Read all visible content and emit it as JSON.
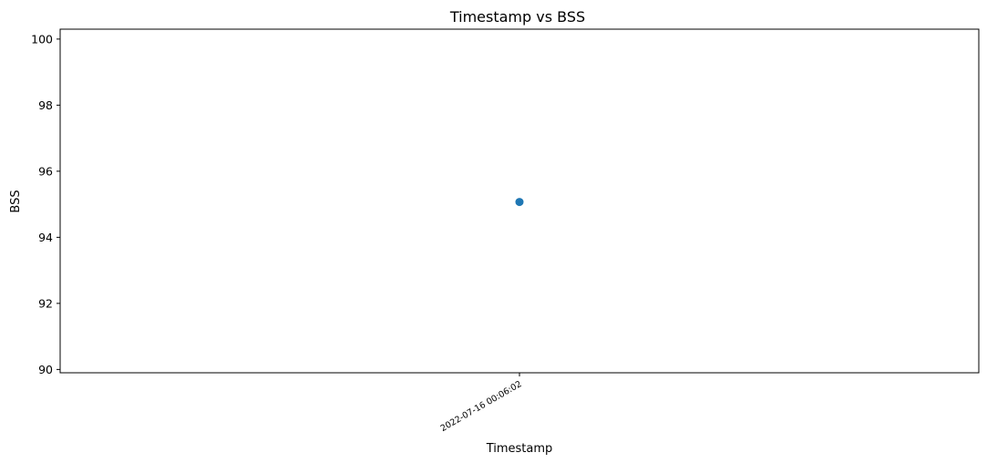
{
  "chart_data": {
    "type": "scatter",
    "title": "Timestamp vs BSS",
    "xlabel": "Timestamp",
    "ylabel": "BSS",
    "x": [
      "2022-07-16 00:06:02"
    ],
    "y": [
      95.07
    ],
    "x_tick_labels": [
      "2022-07-16 00:06:02"
    ],
    "y_ticks": [
      90,
      92,
      94,
      96,
      98,
      100
    ],
    "ylim": [
      89.9,
      100.3
    ],
    "grid": false,
    "marker_color": "#1f77b4"
  }
}
